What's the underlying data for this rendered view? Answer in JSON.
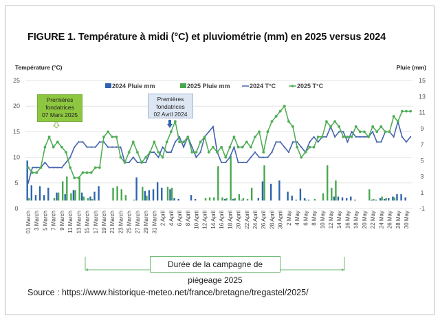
{
  "figure": {
    "title": "FIGURE 1. Température à midi (°C) et pluviométrie (mm) en 2025 versus 2024",
    "source": "Source : https://www.historique-meteo.net/france/bretagne/tregastel/2025/",
    "annotations": {
      "green_box": [
        "Premières",
        "fondatrices",
        "07 Mars 2025"
      ],
      "blue_box": [
        "Premières",
        "fondatrices",
        "02 Avril 2024"
      ],
      "campaign": "Durée de la campagne de piégeage 2025"
    }
  },
  "colors": {
    "blue": "#2f63ad",
    "green": "#48a84f",
    "blue_line": "#4463ad",
    "green_line": "#4fae55"
  },
  "chart_data": {
    "type": "bar+line",
    "ylabel": "Température (°C)",
    "y2label": "Pluie (mm)",
    "ylim": [
      0,
      25
    ],
    "y_ticks": [
      "0",
      "5",
      "10",
      "15",
      "20",
      "25"
    ],
    "y2lim": [
      -1,
      15
    ],
    "y2_ticks": [
      "-1",
      "1",
      "3",
      "5",
      "7",
      "9",
      "11",
      "13",
      "15"
    ],
    "grid": true,
    "legend": {
      "placement": "top",
      "entries": [
        "2024 Pluie mm",
        "2025 Pluie mm",
        "2024 T°C",
        "2025 T°C"
      ]
    },
    "x_tick_labels": [
      "01 March",
      "3 March",
      "5 March",
      "7 March",
      "9 March",
      "11 March",
      "13 March",
      "15 March",
      "17 March",
      "19 March",
      "21 March",
      "23 March",
      "25 March",
      "27 March",
      "29 March",
      "31 March",
      "2 April",
      "4 April",
      "6 April",
      "8 April",
      "10 April",
      "12 April",
      "14 April",
      "16 April",
      "18 April",
      "20 April",
      "22 April",
      "24 April",
      "26 April",
      "28 April",
      "30 April",
      "2 May",
      "4 May",
      "6 May",
      "8 May",
      "10 May",
      "12 May",
      "14 May",
      "16 May",
      "18 May",
      "20 May",
      "22 May",
      "24 May",
      "26 May",
      "28 May",
      "30 May"
    ],
    "days": 92,
    "series": [
      {
        "name": "2024 Pluie mm",
        "kind": "bar",
        "axis": "right",
        "values": [
          5.0,
          1.9,
          0.7,
          1.8,
          0.7,
          1.6,
          0,
          1.0,
          0,
          0.8,
          0,
          1.3,
          0,
          1.0,
          0,
          0.5,
          1.1,
          1.8,
          0,
          0,
          0,
          0,
          0,
          0,
          0,
          0,
          2.9,
          0,
          1.2,
          1.3,
          1.4,
          2.3,
          1.6,
          0,
          1.4,
          0.3,
          0.2,
          0,
          0,
          0.7,
          0.2,
          0,
          0,
          0,
          0,
          0,
          0,
          0.2,
          0,
          0.2,
          0,
          0.1,
          0,
          0,
          0,
          0.3,
          2.4,
          0,
          2.1,
          0,
          2.5,
          0,
          1.1,
          0.6,
          0.1,
          1.5,
          0.3,
          0.1,
          0,
          0,
          0,
          0,
          0,
          0.5,
          0.5,
          0.4,
          0.3,
          0.5,
          0.1,
          0,
          0,
          0,
          0.1,
          0.1,
          0.3,
          0.2,
          0.3,
          0.5,
          0.8,
          0.8,
          0.4,
          0
        ]
      },
      {
        "name": "2025 Pluie mm",
        "kind": "bar",
        "axis": "right",
        "values": [
          0.3,
          0,
          0,
          0,
          0,
          0,
          0.3,
          1.0,
          2.4,
          3.0,
          0.9,
          1.3,
          3.0,
          0.5,
          0.3,
          0.2,
          0,
          0,
          0,
          0,
          1.6,
          1.8,
          1.4,
          0.7,
          0,
          0.1,
          0,
          1.7,
          0.6,
          0,
          0,
          0,
          0,
          1.7,
          1.6,
          0,
          0,
          0,
          0,
          0,
          0,
          0,
          0.3,
          0.4,
          0.4,
          4.3,
          0.4,
          0.3,
          5.6,
          0.3,
          0.8,
          0.3,
          0.2,
          1.6,
          0,
          0,
          4.4,
          0,
          0,
          0,
          0,
          0,
          0,
          0,
          0,
          0,
          0.1,
          0,
          0.2,
          0,
          0.9,
          4.4,
          1.6,
          2.5,
          0,
          0,
          0,
          0,
          0,
          0,
          0,
          1.4,
          0.2,
          0,
          0.5,
          0.3,
          0,
          0.4,
          0,
          0,
          0,
          0
        ]
      },
      {
        "name": "2024 T°C",
        "kind": "line",
        "axis": "left",
        "values": [
          5,
          8,
          8,
          8,
          9,
          8,
          8,
          8,
          8,
          9,
          10,
          12,
          13,
          13,
          12,
          12,
          12,
          13,
          13,
          12,
          12,
          12,
          12,
          9,
          9,
          10,
          9,
          9,
          9,
          11,
          11,
          10,
          12,
          11,
          11,
          13,
          14,
          12,
          14,
          12,
          10,
          11,
          14,
          15,
          16,
          11,
          9,
          9,
          10,
          12,
          9,
          9,
          9,
          10,
          11,
          10,
          10,
          10,
          11,
          13,
          13,
          12,
          11,
          13,
          13,
          12,
          11,
          13,
          14,
          13,
          14,
          14,
          16,
          14,
          15,
          15,
          13,
          15,
          14,
          14,
          14,
          14,
          15,
          13,
          13,
          15,
          15,
          14,
          17,
          14,
          13,
          14
        ]
      },
      {
        "name": "2025 T°C",
        "kind": "line",
        "axis": "left",
        "values": [
          8,
          7,
          7,
          8,
          12,
          14,
          12,
          13,
          12,
          11,
          8,
          6,
          6,
          7,
          7,
          7,
          8,
          8,
          14,
          15,
          14,
          14,
          10,
          9,
          11,
          13,
          11,
          9,
          10,
          11,
          13,
          11,
          10,
          13,
          15,
          17,
          13,
          13,
          14,
          11,
          11,
          13,
          14,
          11,
          12,
          11,
          12,
          10,
          12,
          14,
          12,
          12,
          13,
          12,
          14,
          15,
          11,
          15,
          17,
          18,
          19,
          20,
          17,
          16,
          12,
          10,
          11,
          12,
          12,
          14,
          14,
          17,
          16,
          17,
          16,
          14,
          14,
          14,
          16,
          15,
          15,
          14,
          16,
          15,
          16,
          15,
          15,
          18,
          17,
          19,
          19,
          19
        ]
      }
    ]
  }
}
